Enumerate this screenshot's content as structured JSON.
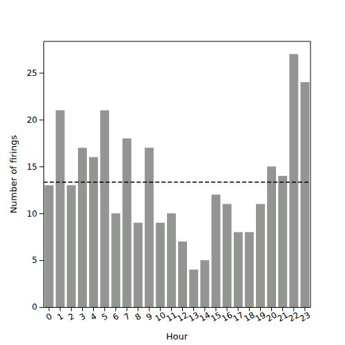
{
  "chart_data": {
    "type": "bar",
    "x_label": "Hour",
    "y_label": "Number of firings",
    "categories": [
      "0",
      "1",
      "2",
      "3",
      "4",
      "5",
      "6",
      "7",
      "8",
      "9",
      "10",
      "11",
      "12",
      "13",
      "14",
      "15",
      "16",
      "17",
      "18",
      "19",
      "20",
      "21",
      "22",
      "23"
    ],
    "values": [
      13,
      21,
      13,
      17,
      16,
      21,
      10,
      18,
      9,
      17,
      9,
      10,
      7,
      4,
      5,
      12,
      11,
      8,
      8,
      11,
      15,
      14,
      27,
      24
    ],
    "color": "#929591",
    "mean": 13.33,
    "ylim": [
      0,
      28.35
    ],
    "yticks": [
      0,
      5,
      10,
      15,
      20,
      25
    ],
    "grid": false
  }
}
